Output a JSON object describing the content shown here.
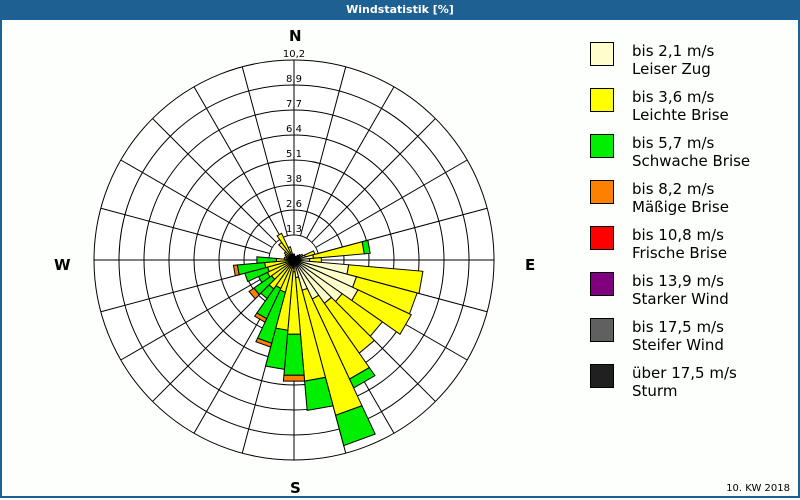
{
  "title": "Windstatistik [%]",
  "footer": "10. KW 2018",
  "directions": {
    "N": "N",
    "E": "E",
    "S": "S",
    "W": "W"
  },
  "legend": [
    {
      "speed": "bis 2,1 m/s",
      "name": "Leiser Zug",
      "color": "#ffffcc"
    },
    {
      "speed": "bis 3,6 m/s",
      "name": "Leichte Brise",
      "color": "#ffff00"
    },
    {
      "speed": "bis 5,7 m/s",
      "name": "Schwache Brise",
      "color": "#00ee00"
    },
    {
      "speed": "bis 8,2 m/s",
      "name": "Mäßige Brise",
      "color": "#ff8000"
    },
    {
      "speed": "bis 10,8 m/s",
      "name": "Frische Brise",
      "color": "#ff0000"
    },
    {
      "speed": "bis 13,9 m/s",
      "name": "Starker Wind",
      "color": "#800080"
    },
    {
      "speed": "bis 17,5 m/s",
      "name": "Steifer Wind",
      "color": "#606060"
    },
    {
      "speed": "über 17,5 m/s",
      "name": "Sturm",
      "color": "#202020"
    }
  ],
  "chart_data": {
    "type": "wind-rose",
    "title": "Windstatistik [%]",
    "unit": "%",
    "ring_labels": [
      "1,3",
      "2,6",
      "3,8",
      "5,1",
      "6,4",
      "7,7",
      "8,9",
      "10,2"
    ],
    "ring_values": [
      1.3,
      2.6,
      3.8,
      5.1,
      6.4,
      7.7,
      8.9,
      10.2
    ],
    "rmax": 10.2,
    "series_names": [
      "bis 2,1 m/s",
      "bis 3,6 m/s",
      "bis 5,7 m/s",
      "bis 8,2 m/s",
      "bis 10,8 m/s",
      "bis 13,9 m/s",
      "bis 17,5 m/s",
      "über 17,5 m/s"
    ],
    "petals": [
      {
        "dir": 0,
        "values": [
          0.2,
          0.1,
          0,
          0,
          0,
          0,
          0,
          0
        ]
      },
      {
        "dir": 10,
        "values": [
          0.2,
          0,
          0,
          0,
          0,
          0,
          0,
          0
        ]
      },
      {
        "dir": 20,
        "values": [
          0.2,
          0,
          0,
          0,
          0,
          0,
          0,
          0
        ]
      },
      {
        "dir": 30,
        "values": [
          0.2,
          0,
          0,
          0,
          0,
          0,
          0,
          0
        ]
      },
      {
        "dir": 40,
        "values": [
          0.2,
          0.1,
          0,
          0,
          0,
          0,
          0,
          0
        ]
      },
      {
        "dir": 50,
        "values": [
          0.3,
          0.1,
          0,
          0,
          0,
          0,
          0,
          0
        ]
      },
      {
        "dir": 60,
        "values": [
          0.3,
          0.2,
          0,
          0,
          0,
          0,
          0,
          0
        ]
      },
      {
        "dir": 70,
        "values": [
          0.6,
          0.5,
          0,
          0,
          0,
          0,
          0,
          0
        ]
      },
      {
        "dir": 80,
        "values": [
          1.0,
          2.6,
          0.3,
          0,
          0,
          0,
          0,
          0
        ]
      },
      {
        "dir": 90,
        "values": [
          0.8,
          0.6,
          0,
          0,
          0,
          0,
          0,
          0
        ]
      },
      {
        "dir": 100,
        "values": [
          2.8,
          3.8,
          0,
          0,
          0,
          0,
          0,
          0
        ]
      },
      {
        "dir": 110,
        "values": [
          3.3,
          3.2,
          0,
          0,
          0,
          0,
          0,
          0
        ]
      },
      {
        "dir": 120,
        "values": [
          3.6,
          3.0,
          0,
          0,
          0,
          0,
          0,
          0
        ]
      },
      {
        "dir": 130,
        "values": [
          3.0,
          2.5,
          0,
          0,
          0,
          0,
          0,
          0
        ]
      },
      {
        "dir": 140,
        "values": [
          2.7,
          3.1,
          0,
          0,
          0,
          0,
          0,
          0
        ]
      },
      {
        "dir": 150,
        "values": [
          2.2,
          4.5,
          0.5,
          0,
          0,
          0,
          0,
          0
        ]
      },
      {
        "dir": 160,
        "values": [
          1.6,
          6.6,
          1.6,
          0,
          0,
          0,
          0,
          0
        ]
      },
      {
        "dir": 170,
        "values": [
          0.9,
          5.3,
          1.5,
          0,
          0,
          0,
          0,
          0
        ]
      },
      {
        "dir": 180,
        "values": [
          0.6,
          3.2,
          2.1,
          0.3,
          0,
          0,
          0,
          0
        ]
      },
      {
        "dir": 190,
        "values": [
          0.4,
          3.2,
          2.0,
          0,
          0,
          0,
          0,
          0
        ]
      },
      {
        "dir": 200,
        "values": [
          0.3,
          1.4,
          2.7,
          0.2,
          0,
          0,
          0,
          0
        ]
      },
      {
        "dir": 210,
        "values": [
          0.3,
          1.3,
          1.7,
          0.2,
          0,
          0,
          0,
          0
        ]
      },
      {
        "dir": 220,
        "values": [
          0.3,
          1.5,
          0.6,
          0,
          0,
          0,
          0,
          0
        ]
      },
      {
        "dir": 230,
        "values": [
          0.2,
          1.2,
          1.1,
          0.3,
          0,
          0,
          0,
          0
        ]
      },
      {
        "dir": 240,
        "values": [
          0.2,
          1.3,
          0.5,
          0,
          0,
          0,
          0,
          0
        ]
      },
      {
        "dir": 250,
        "values": [
          0.2,
          1.2,
          1.2,
          0,
          0,
          0,
          0,
          0
        ]
      },
      {
        "dir": 260,
        "values": [
          0.2,
          1.3,
          1.4,
          0.2,
          0,
          0,
          0,
          0
        ]
      },
      {
        "dir": 270,
        "values": [
          0.2,
          0.7,
          1.0,
          0,
          0,
          0,
          0,
          0
        ]
      },
      {
        "dir": 280,
        "values": [
          0.2,
          0.3,
          0,
          0,
          0,
          0,
          0,
          0
        ]
      },
      {
        "dir": 290,
        "values": [
          0.2,
          0.2,
          0,
          0,
          0,
          0,
          0,
          0
        ]
      },
      {
        "dir": 300,
        "values": [
          0.2,
          0.3,
          0,
          0,
          0,
          0,
          0,
          0
        ]
      },
      {
        "dir": 310,
        "values": [
          0.2,
          0.4,
          0,
          0,
          0,
          0,
          0,
          0
        ]
      },
      {
        "dir": 320,
        "values": [
          0.3,
          0.8,
          0,
          0,
          0,
          0,
          0,
          0
        ]
      },
      {
        "dir": 330,
        "values": [
          0.3,
          1.2,
          0,
          0,
          0,
          0,
          0,
          0
        ]
      },
      {
        "dir": 340,
        "values": [
          0.2,
          0.5,
          0,
          0,
          0,
          0,
          0,
          0
        ]
      },
      {
        "dir": 350,
        "values": [
          0.2,
          0.1,
          0,
          0,
          0,
          0,
          0,
          0
        ]
      }
    ]
  }
}
